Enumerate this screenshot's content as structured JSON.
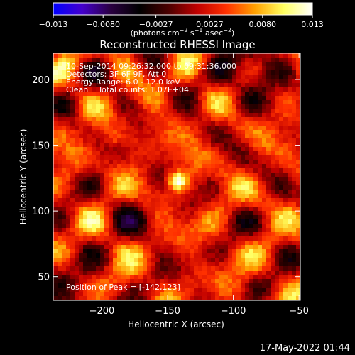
{
  "colorbar": {
    "ticks": [
      "-0.013",
      "-0.0080",
      "-0.0027",
      "0.0027",
      "0.0080",
      "0.013"
    ],
    "unit_label": "(photons cm$^{-2}$ s$^{-1}$ asec$^{-2}$)",
    "unit_display": {
      "main": "(photons cm",
      "exp1": "−2",
      "s": " s",
      "exp2": "−1",
      "asec": " asec",
      "exp3": "−2",
      "close": ")"
    },
    "vmin": -0.013,
    "vmax": 0.013
  },
  "chart_data": {
    "type": "heatmap",
    "title": "Reconstructed RHESSI Image",
    "xlabel": "Heliocentric X (arcsec)",
    "ylabel": "Heliocentric Y (arcsec)",
    "xlim": [
      -237,
      -49
    ],
    "ylim": [
      32,
      220
    ],
    "x_ticks": [
      -200,
      -150,
      -100,
      -50
    ],
    "y_ticks": [
      50,
      100,
      150,
      200
    ],
    "x_tick_labels": [
      "−200",
      "−150",
      "−100",
      "−50"
    ],
    "y_tick_labels": [
      "50",
      "100",
      "150",
      "200"
    ],
    "peak": {
      "x": -142,
      "y": 123
    },
    "annotations": [
      "10-Sep-2014 09:26:32.000 to 09:31:36.000",
      "Detectors: 3F 6F 9F, Att 0",
      "Energy Range: 6.0 - 12.0 keV",
      "Clean    Total counts: 1.07E+04"
    ],
    "peak_label": "Position of Peak = [-142,123]",
    "colormap_stops": [
      "#0000ff",
      "#4400cc",
      "#2a0040",
      "#000000",
      "#4a0000",
      "#c00000",
      "#ff3000",
      "#ffa000",
      "#ffff60",
      "#ffffff"
    ]
  },
  "footer": {
    "timestamp": "17-May-2022 01:44"
  }
}
